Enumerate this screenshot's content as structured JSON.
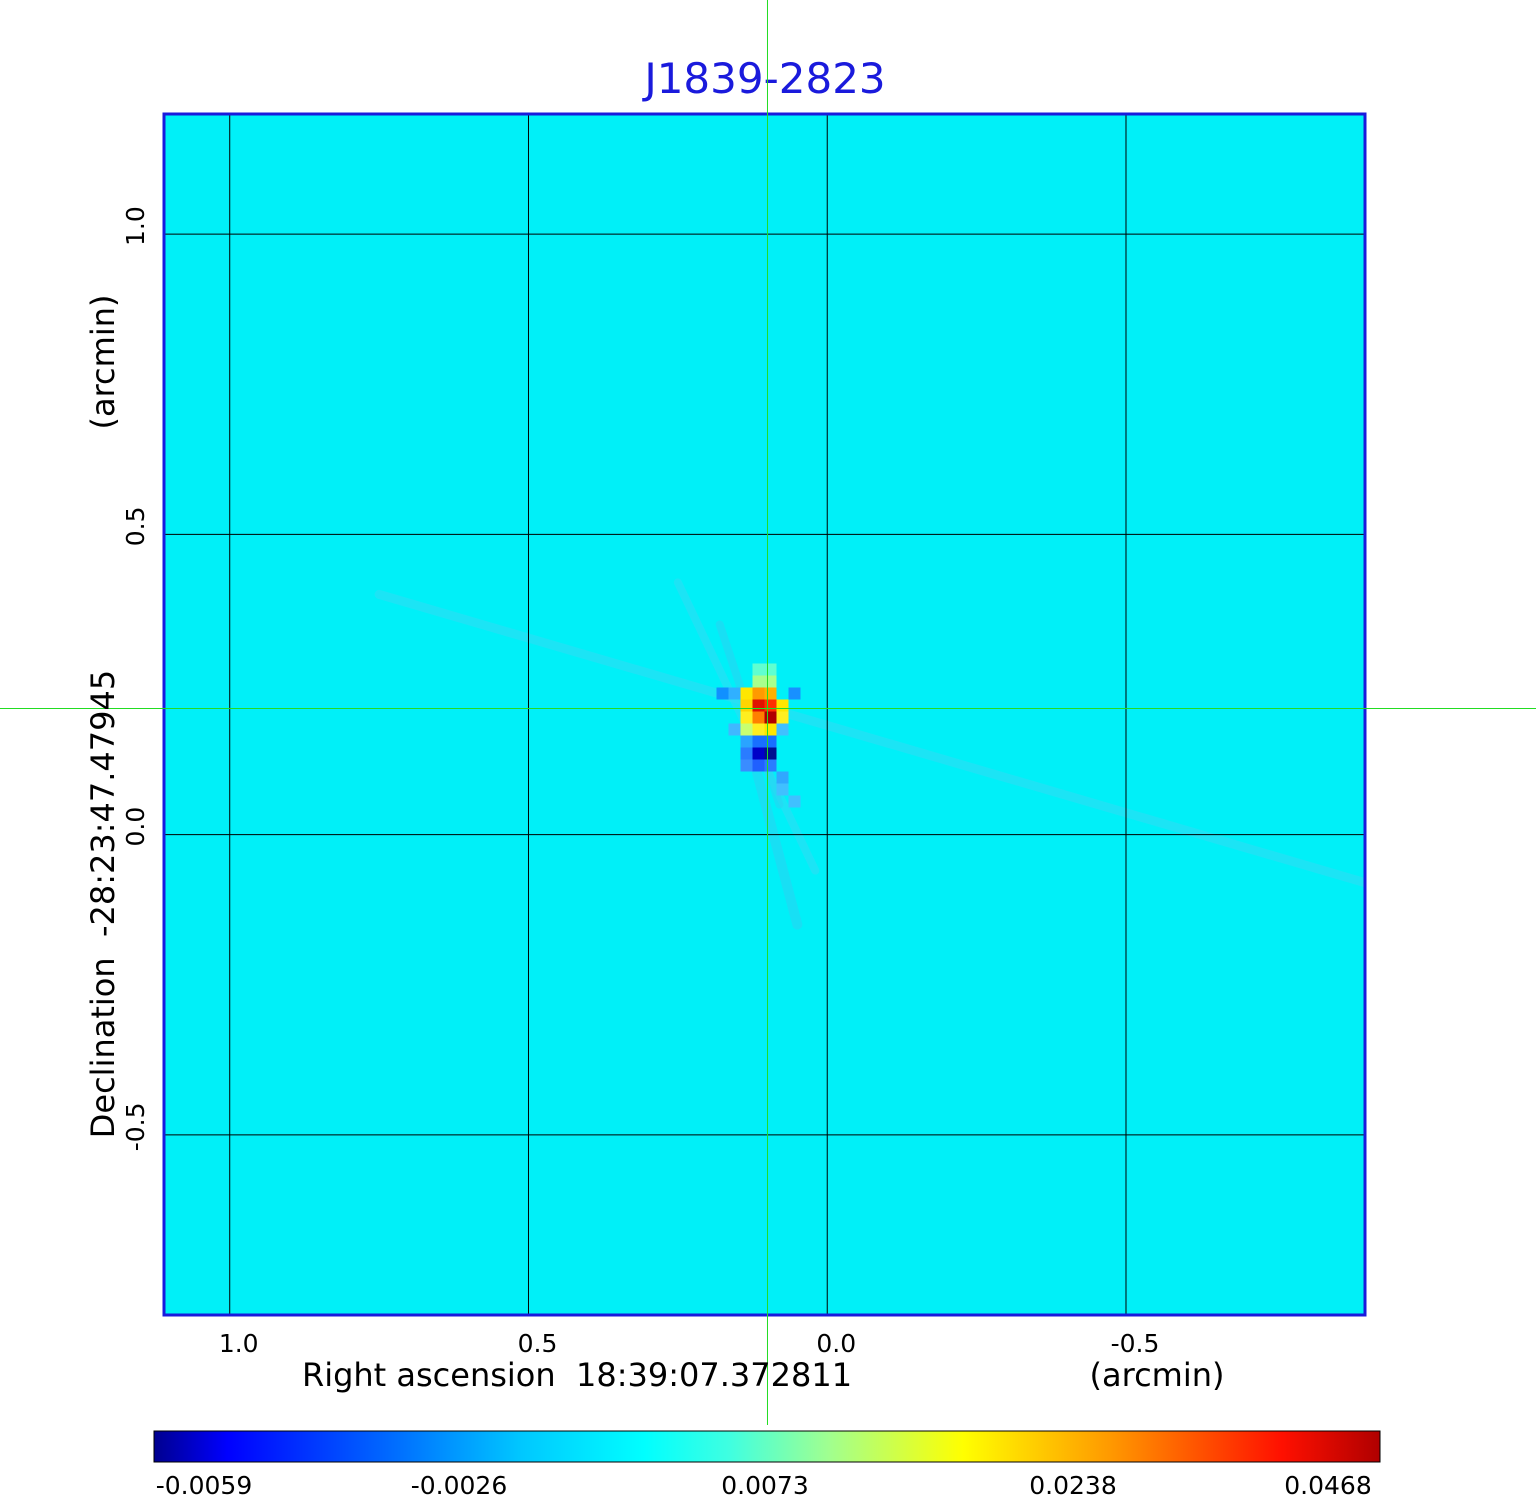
{
  "chart_data": {
    "type": "heatmap",
    "title": "J1839-2823",
    "xlabel": "Right ascension  18:39:07.372811",
    "xunit": "(arcmin)",
    "ylabel": "Declination  -28:23:47.47945",
    "yunit": "(arcmin)",
    "xlim": [
      1.11,
      -0.9
    ],
    "ylim": [
      -0.8,
      1.2
    ],
    "x_ticks": [
      1.0,
      0.5,
      0.0,
      -0.5
    ],
    "x_tick_labels": [
      "1.0",
      "0.5",
      "0.0",
      "-0.5"
    ],
    "y_ticks": [
      1.0,
      0.5,
      0.0,
      -0.5
    ],
    "y_tick_labels": [
      "1.0",
      "0.5",
      "0.0",
      "-0.5"
    ],
    "grid": true,
    "crosshair": {
      "x": 0.1,
      "y": 0.21
    },
    "source_peak": {
      "x": 0.105,
      "y": 0.205,
      "value": 0.0468
    },
    "negative_feature": {
      "x": 0.105,
      "y": 0.125,
      "value": -0.0059
    },
    "colorbar": {
      "colormap": "jet",
      "min": -0.0059,
      "max": 0.0468,
      "ticks": [
        -0.0059,
        -0.0026,
        0.0073,
        0.0238,
        0.0468
      ],
      "tick_labels": [
        "-0.0059",
        "-0.0026",
        "0.0073",
        "0.0238",
        "0.0468"
      ]
    },
    "colors": {
      "title": "#1a1adc",
      "frame": "#1a1adc",
      "background": "#00f0f8",
      "crosshair": "#22dd22",
      "grid": "#000000"
    }
  }
}
